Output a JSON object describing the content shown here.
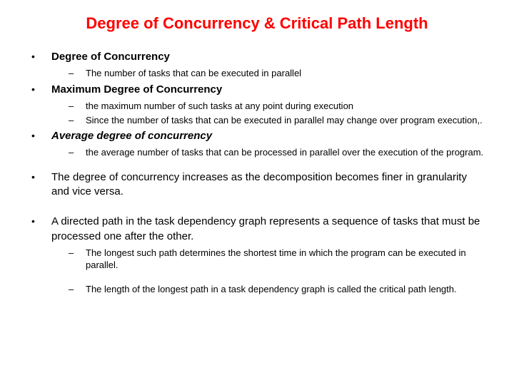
{
  "title": "Degree of Concurrency & Critical Path Length",
  "sections": [
    {
      "heading": "Degree of Concurrency",
      "italic": false,
      "subs": [
        "The number of tasks that can be executed in parallel"
      ]
    },
    {
      "heading": "Maximum Degree of Concurrency",
      "italic": false,
      "subs": [
        "the maximum number of such tasks at any point during execution",
        "Since the number of tasks that can be executed in parallel may change over program execution,."
      ]
    },
    {
      "heading": "Average degree of concurrency",
      "italic": true,
      "subs": [
        "the average number of tasks that can be processed in parallel over the execution of the program."
      ]
    },
    {
      "body": "The degree of concurrency increases as the decomposition becomes finer in granularity and vice versa.",
      "subs": []
    },
    {
      "body": "A directed path in the task dependency graph represents a sequence of tasks that must be processed one after the other.",
      "subs": [
        "The longest such path determines the shortest time in which the program can be executed in parallel.",
        "The length of the longest path in a task dependency graph is called the critical path length."
      ]
    }
  ],
  "colors": {
    "title": "#ff0000",
    "text": "#000000",
    "background": "#ffffff"
  }
}
